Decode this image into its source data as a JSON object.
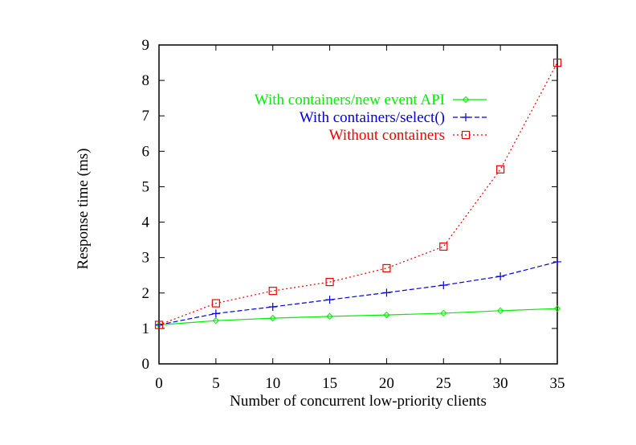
{
  "chart_data": {
    "type": "line",
    "title": "",
    "xlabel": "Number of concurrent low-priority clients",
    "ylabel": "Response time (ms)",
    "xlim": [
      0,
      35
    ],
    "ylim": [
      0,
      9
    ],
    "xticks": [
      0,
      5,
      10,
      15,
      20,
      25,
      30,
      35
    ],
    "yticks": [
      0,
      1,
      2,
      3,
      4,
      5,
      6,
      7,
      8,
      9
    ],
    "grid": false,
    "legend_position": "top-right",
    "x": [
      0,
      5,
      10,
      15,
      20,
      25,
      30,
      35
    ],
    "series": [
      {
        "name": "With containers/new event API",
        "color": "#00ee00",
        "marker": "diamond",
        "dash": "solid",
        "values": [
          1.1,
          1.22,
          1.29,
          1.34,
          1.38,
          1.43,
          1.5,
          1.56
        ]
      },
      {
        "name": "With containers/select()",
        "color": "#0000dd",
        "marker": "plus",
        "dash": "dashed",
        "values": [
          1.1,
          1.42,
          1.61,
          1.81,
          2.01,
          2.22,
          2.47,
          2.88
        ]
      },
      {
        "name": "Without containers",
        "color": "#ee0000",
        "marker": "square",
        "dash": "dotted",
        "values": [
          1.1,
          1.71,
          2.06,
          2.31,
          2.7,
          3.31,
          5.49,
          8.5
        ]
      }
    ]
  }
}
